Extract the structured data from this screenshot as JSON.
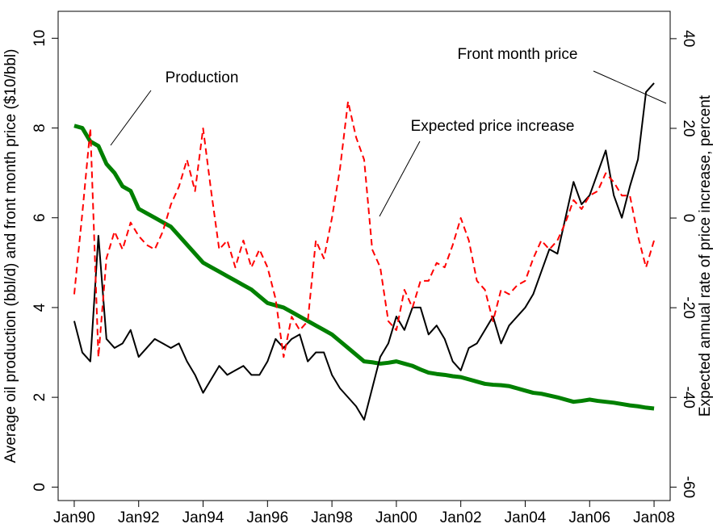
{
  "chart_data": {
    "type": "line",
    "ylabel": "Average oil production (bbl/d) and front month price ($10/bbl)",
    "y2label": "Expected annual rate of price increase, percent",
    "x": [
      1990,
      1990.25,
      1990.5,
      1990.75,
      1991,
      1991.25,
      1991.5,
      1991.75,
      1992,
      1992.25,
      1992.5,
      1992.75,
      1993,
      1993.25,
      1993.5,
      1993.75,
      1994,
      1994.25,
      1994.5,
      1994.75,
      1995,
      1995.25,
      1995.5,
      1995.75,
      1996,
      1996.25,
      1996.5,
      1996.75,
      1997,
      1997.25,
      1997.5,
      1997.75,
      1998,
      1998.25,
      1998.5,
      1998.75,
      1999,
      1999.25,
      1999.5,
      1999.75,
      2000,
      2000.25,
      2000.5,
      2000.75,
      2001,
      2001.25,
      2001.5,
      2001.75,
      2002,
      2002.25,
      2002.5,
      2002.75,
      2003,
      2003.25,
      2003.5,
      2003.75,
      2004,
      2004.25,
      2004.5,
      2004.75,
      2005,
      2005.25,
      2005.5,
      2005.75,
      2006,
      2006.25,
      2006.5,
      2006.75,
      2007,
      2007.25,
      2007.5,
      2007.75,
      2008
    ],
    "xlim": [
      1989.5,
      2008.5
    ],
    "xticks": [
      {
        "value": 1990,
        "label": "Jan90"
      },
      {
        "value": 1992,
        "label": "Jan92"
      },
      {
        "value": 1994,
        "label": "Jan94"
      },
      {
        "value": 1996,
        "label": "Jan96"
      },
      {
        "value": 1998,
        "label": "Jan98"
      },
      {
        "value": 2000,
        "label": "Jan00"
      },
      {
        "value": 2002,
        "label": "Jan02"
      },
      {
        "value": 2004,
        "label": "Jan04"
      },
      {
        "value": 2006,
        "label": "Jan06"
      },
      {
        "value": 2008,
        "label": "Jan08"
      }
    ],
    "ylim": [
      -0.3,
      10.6
    ],
    "yticks": [
      0,
      2,
      4,
      6,
      8,
      10
    ],
    "y2lim": [
      -63,
      46.1
    ],
    "y2ticks": [
      -60,
      -40,
      -20,
      0,
      20,
      40
    ],
    "series": [
      {
        "name": "Production",
        "color": "#008000",
        "width": 5,
        "dash": false,
        "values": [
          8.05,
          8.0,
          7.7,
          7.6,
          7.2,
          7.0,
          6.7,
          6.6,
          6.2,
          6.1,
          6.0,
          5.9,
          5.8,
          5.6,
          5.4,
          5.2,
          5.0,
          4.9,
          4.8,
          4.7,
          4.6,
          4.5,
          4.4,
          4.25,
          4.1,
          4.05,
          4.0,
          3.9,
          3.8,
          3.7,
          3.6,
          3.5,
          3.4,
          3.25,
          3.1,
          2.95,
          2.8,
          2.78,
          2.75,
          2.77,
          2.8,
          2.75,
          2.7,
          2.62,
          2.55,
          2.52,
          2.5,
          2.47,
          2.45,
          2.4,
          2.35,
          2.3,
          2.28,
          2.27,
          2.25,
          2.2,
          2.15,
          2.1,
          2.08,
          2.04,
          2.0,
          1.95,
          1.9,
          1.92,
          1.95,
          1.92,
          1.9,
          1.88,
          1.85,
          1.82,
          1.8,
          1.77,
          1.75
        ]
      },
      {
        "name": "Front month price",
        "color": "#000000",
        "width": 2,
        "dash": false,
        "values": [
          3.7,
          3.0,
          2.8,
          5.6,
          3.3,
          3.1,
          3.2,
          3.5,
          2.9,
          3.1,
          3.3,
          3.2,
          3.1,
          3.2,
          2.8,
          2.5,
          2.1,
          2.4,
          2.7,
          2.5,
          2.6,
          2.7,
          2.5,
          2.5,
          2.8,
          3.3,
          3.1,
          3.3,
          3.4,
          2.8,
          3.0,
          3.0,
          2.5,
          2.2,
          2.0,
          1.8,
          1.5,
          2.2,
          2.9,
          3.2,
          3.8,
          3.5,
          4.0,
          4.0,
          3.4,
          3.6,
          3.3,
          2.8,
          2.6,
          3.1,
          3.2,
          3.5,
          3.8,
          3.2,
          3.6,
          3.8,
          4.0,
          4.3,
          4.8,
          5.3,
          5.2,
          6.0,
          6.8,
          6.3,
          6.5,
          7.0,
          7.5,
          6.5,
          6.0,
          6.7,
          7.3,
          8.8,
          9.0
        ]
      },
      {
        "name": "Expected price increase",
        "color": "#ff0000",
        "width": 2,
        "dash": true,
        "axis": "y2",
        "values": [
          -17,
          1,
          20,
          -31,
          -9,
          -3,
          -7,
          -1,
          -4,
          -6,
          -7,
          -3,
          3,
          7,
          13,
          6,
          20,
          6,
          -7,
          -5,
          -11,
          -5,
          -11,
          -7,
          -11,
          -18,
          -31,
          -22,
          -25,
          -23,
          -5,
          -9,
          0,
          11,
          26,
          18,
          13,
          -7,
          -11,
          -23,
          -25,
          -16,
          -20,
          -14,
          -14,
          -10,
          -11,
          -6,
          0,
          -5,
          -14,
          -16,
          -23,
          -16,
          -17,
          -15,
          -14,
          -9,
          -5,
          -7,
          -5,
          -1,
          4,
          2,
          5,
          6,
          10,
          8,
          5,
          5,
          -4,
          -11,
          -5
        ]
      }
    ]
  }
}
